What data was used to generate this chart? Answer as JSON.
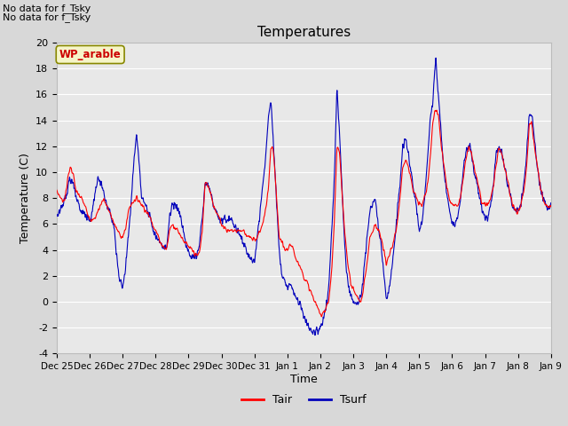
{
  "title": "Temperatures",
  "xlabel": "Time",
  "ylabel": "Temperature (C)",
  "ylim": [
    -4,
    20
  ],
  "fig_bg_color": "#d8d8d8",
  "plot_bg_color": "#e8e8e8",
  "grid_color": "#ffffff",
  "no_data_text1": "No data for f_Tsky",
  "no_data_text2": "No data for f_Tsky",
  "wp_label": "WP_arable",
  "xtick_labels": [
    "Dec 25",
    "Dec 26",
    "Dec 27",
    "Dec 28",
    "Dec 29",
    "Dec 30",
    "Dec 31",
    "Jan 1",
    "Jan 2",
    "Jan 3",
    "Jan 4",
    "Jan 5",
    "Jan 6",
    "Jan 7",
    "Jan 8",
    "Jan 9"
  ],
  "tair_color": "#ff0000",
  "tsurf_color": "#0000bb",
  "legend_tair": "Tair",
  "legend_tsurf": "Tsurf",
  "figsize": [
    6.4,
    4.8
  ],
  "dpi": 100
}
